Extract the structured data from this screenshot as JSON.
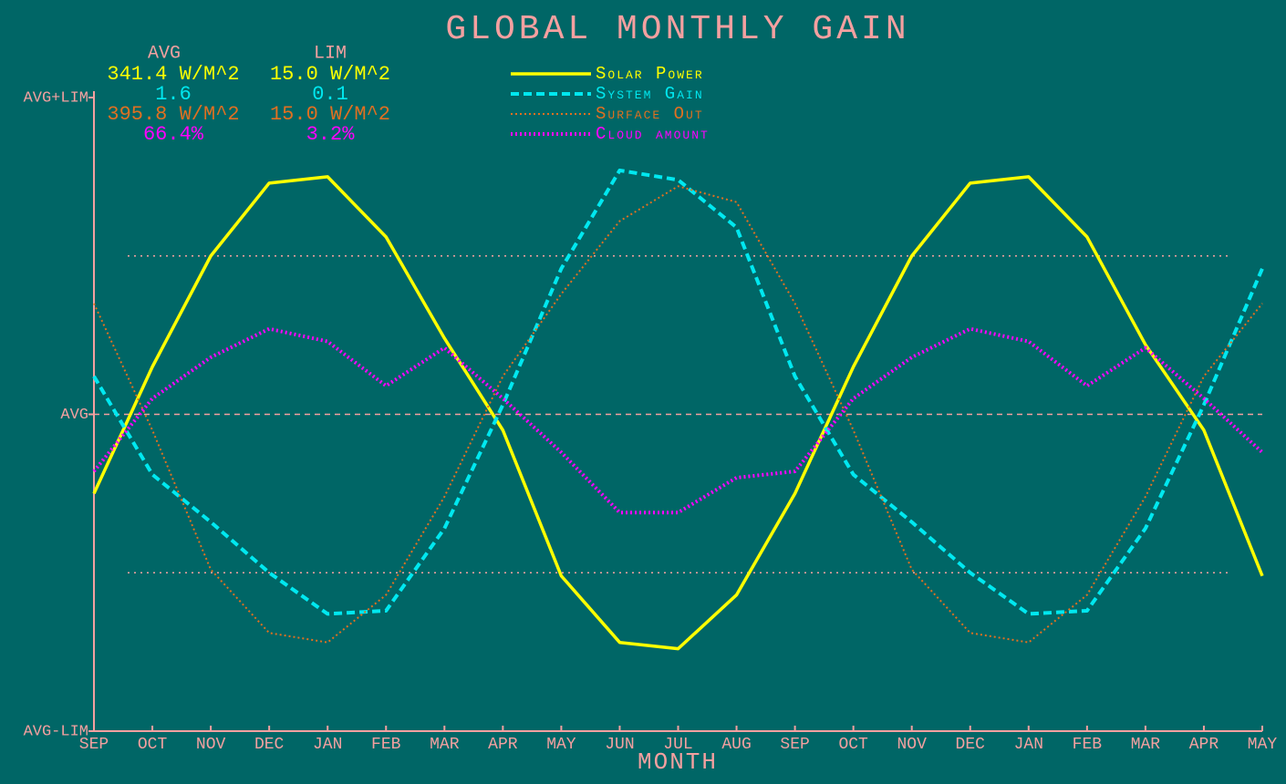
{
  "chart_data": {
    "type": "line",
    "title": "GLOBAL MONTHLY GAIN",
    "x_label": "MONTH",
    "stats_headers": [
      "AVG",
      "LIM"
    ],
    "categories": [
      "SEP",
      "OCT",
      "NOV",
      "DEC",
      "JAN",
      "FEB",
      "MAR",
      "APR",
      "MAY",
      "JUN",
      "JUL",
      "AUG",
      "SEP",
      "OCT",
      "NOV",
      "DEC",
      "JAN",
      "FEB",
      "MAR",
      "APR",
      "MAY"
    ],
    "ylim": [
      -1,
      1
    ],
    "yticks": [
      {
        "value": -1,
        "label": "AVG-LIM"
      },
      {
        "value": 0,
        "label": "AVG"
      },
      {
        "value": 1,
        "label": "AVG+LIM"
      }
    ],
    "grid_lines": [
      0.5,
      -0.5
    ],
    "series": [
      {
        "name": "Solar Power",
        "color": "#ffff00",
        "style": "solid",
        "avg": "341.4 W/M^2",
        "lim": "15.0 W/M^2",
        "values": [
          -0.25,
          0.15,
          0.5,
          0.73,
          0.75,
          0.56,
          0.24,
          -0.05,
          -0.51,
          -0.72,
          -0.74,
          -0.57,
          -0.25,
          0.15,
          0.5,
          0.73,
          0.75,
          0.56,
          0.22,
          -0.05,
          -0.51
        ]
      },
      {
        "name": "System Gain",
        "color": "#00e8f0",
        "style": "dashed",
        "avg": "1.6",
        "lim": "0.1",
        "values": [
          0.12,
          -0.19,
          -0.34,
          -0.5,
          -0.63,
          -0.62,
          -0.36,
          0.03,
          0.46,
          0.77,
          0.74,
          0.59,
          0.12,
          -0.19,
          -0.34,
          -0.5,
          -0.63,
          -0.62,
          -0.36,
          0.03,
          0.46
        ]
      },
      {
        "name": "Surface Out",
        "color": "#e07020",
        "style": "dotted",
        "avg": "395.8 W/M^2",
        "lim": "15.0 W/M^2",
        "values": [
          0.35,
          -0.05,
          -0.49,
          -0.69,
          -0.72,
          -0.57,
          -0.26,
          0.12,
          0.38,
          0.61,
          0.72,
          0.67,
          0.35,
          -0.05,
          -0.49,
          -0.69,
          -0.72,
          -0.57,
          -0.26,
          0.12,
          0.35
        ]
      },
      {
        "name": "Cloud amount",
        "color": "#ff00ff",
        "style": "dotted-thick",
        "avg": "66.4%",
        "lim": "3.2%",
        "values": [
          -0.18,
          0.05,
          0.18,
          0.27,
          0.23,
          0.09,
          0.21,
          0.05,
          -0.12,
          -0.31,
          -0.31,
          -0.2,
          -0.18,
          0.05,
          0.18,
          0.27,
          0.23,
          0.09,
          0.21,
          0.05,
          -0.12
        ]
      }
    ]
  }
}
